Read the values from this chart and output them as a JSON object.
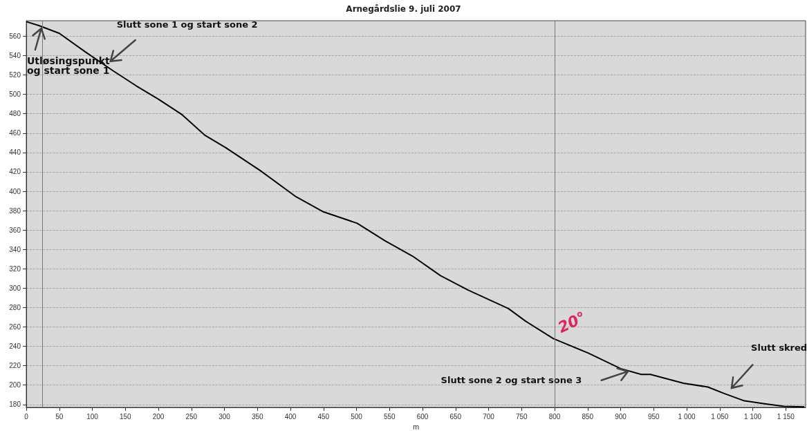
{
  "chart_data": {
    "type": "line",
    "title": "Arnegårdslie 9. juli 2007",
    "xlabel": "m",
    "x": [
      0,
      19,
      50,
      89,
      131,
      166,
      200,
      236,
      270,
      302,
      354,
      407,
      449,
      501,
      543,
      585,
      627,
      669,
      730,
      756,
      798,
      851,
      900,
      931,
      945,
      995,
      1032,
      1056,
      1086,
      1116,
      1147,
      1178
    ],
    "series": [
      {
        "color": "#000000",
        "values": [
          575,
          571,
          563,
          544,
          524.5,
          509,
          495,
          479,
          458,
          445,
          421.5,
          395,
          379,
          367,
          349,
          333,
          313,
          298,
          279,
          266,
          248,
          233,
          217,
          211,
          211,
          202,
          198,
          191.5,
          184,
          181,
          178,
          177.5
        ]
      }
    ],
    "xlim": [
      0,
      1180
    ],
    "ylim": [
      177,
      576
    ],
    "xticks": [
      0,
      50,
      100,
      150,
      200,
      250,
      300,
      350,
      400,
      450,
      500,
      550,
      600,
      650,
      700,
      750,
      800,
      850,
      900,
      950,
      {
        "value": 1000,
        "label": "1 000"
      },
      {
        "value": 1050,
        "label": "1 050"
      },
      {
        "value": 1100,
        "label": "1 100"
      },
      {
        "value": 1150,
        "label": "1 150"
      }
    ],
    "yticks": [
      180,
      200,
      220,
      240,
      260,
      280,
      300,
      320,
      340,
      360,
      380,
      400,
      420,
      440,
      460,
      480,
      500,
      520,
      540,
      560
    ],
    "grid": "y",
    "marker": "none",
    "line_style": "solid",
    "ref_lines": [
      {
        "axis": "x",
        "value": 24,
        "color": "#777777"
      },
      {
        "axis": "x",
        "value": 800,
        "color": "#777777"
      }
    ],
    "annotations": [
      {
        "text": "Utløsingspunkt\nog start sone 1",
        "x": 24,
        "y": 571
      },
      "Slutt sone 1 og start sone 2",
      {
        "text": "20°"
      },
      "Slutt sone 2 og start sone 3",
      "Slutt skred"
    ]
  }
}
